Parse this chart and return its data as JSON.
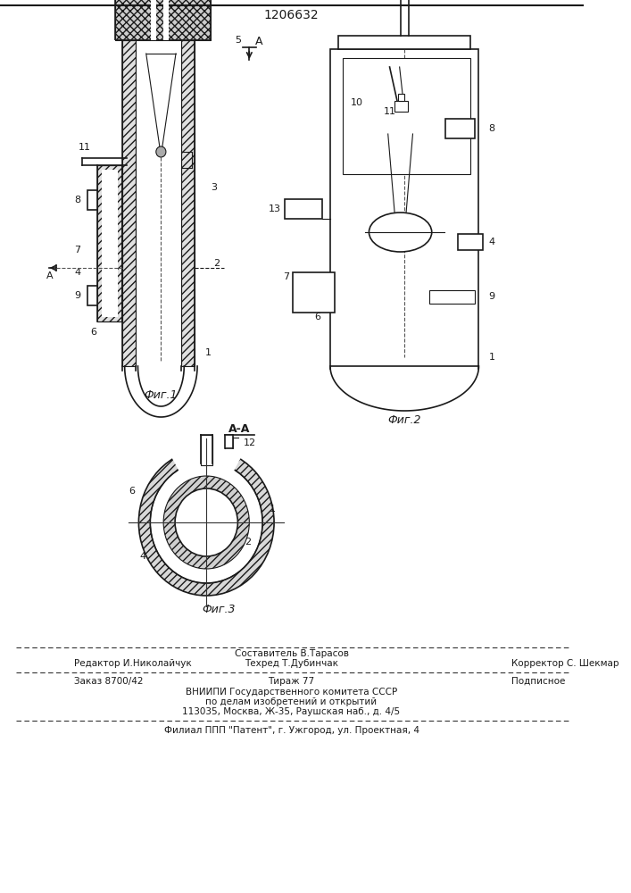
{
  "patent_number": "1206632",
  "bg_color": "#ffffff",
  "line_color": "#1a1a1a",
  "fig1_caption": "Фиг.1",
  "fig2_caption": "Фиг.2",
  "fig3_caption": "Фиг.3",
  "section_label": "A-A",
  "footer_sestavitel": "Составитель В.Тарасов",
  "footer_editor": "Редактор И.Николайчук",
  "footer_tekhred": "Техред Т.Дубинчак",
  "footer_korrektor": "Корректор С. Шекмар",
  "footer_zakaz": "Заказ 8700/42",
  "footer_tirazh": "Тираж 77",
  "footer_podpisnoe": "Подписное",
  "footer_vniiipi": "ВНИИПИ Государственного комитета СССР",
  "footer_po_delam": "по делам изобретений и открытий",
  "footer_address": "113035, Москва, Ж-35, Раушская наб., д. 4/5",
  "footer_filial": "Филиал ППП \"Патент\", г. Ужгород, ул. Проектная, 4"
}
